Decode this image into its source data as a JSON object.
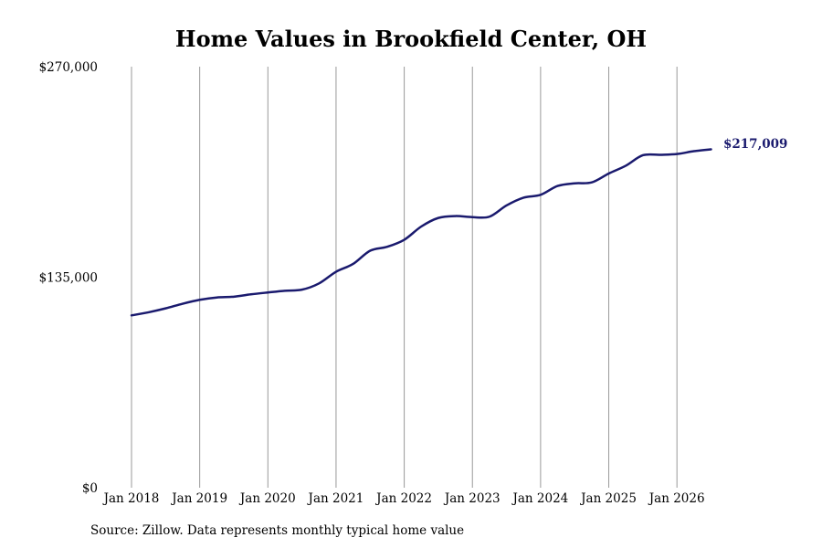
{
  "chart_data": {
    "type": "line",
    "title": "Home Values in Brookfield Center, OH",
    "xlabel": "",
    "ylabel": "",
    "yticks": [
      {
        "value": 0,
        "label": "$0"
      },
      {
        "value": 135000,
        "label": "$135,000"
      },
      {
        "value": 270000,
        "label": "$270,000"
      }
    ],
    "ylim": [
      0,
      270000
    ],
    "xlim": [
      "2018-01",
      "2026-07"
    ],
    "xticks": [
      {
        "value": "2018-01",
        "label": "Jan 2018"
      },
      {
        "value": "2019-01",
        "label": "Jan 2019"
      },
      {
        "value": "2020-01",
        "label": "Jan 2020"
      },
      {
        "value": "2021-01",
        "label": "Jan 2021"
      },
      {
        "value": "2022-01",
        "label": "Jan 2022"
      },
      {
        "value": "2023-01",
        "label": "Jan 2023"
      },
      {
        "value": "2024-01",
        "label": "Jan 2024"
      },
      {
        "value": "2025-01",
        "label": "Jan 2025"
      },
      {
        "value": "2026-01",
        "label": "Jan 2026"
      }
    ],
    "grid": "vertical",
    "line_color": "#1a1a6e",
    "end_label": "$217,009",
    "series": [
      {
        "x": [
          "2018-01",
          "2018-04",
          "2018-07",
          "2018-10",
          "2019-01",
          "2019-04",
          "2019-07",
          "2019-10",
          "2020-01",
          "2020-04",
          "2020-07",
          "2020-10",
          "2021-01",
          "2021-04",
          "2021-07",
          "2021-10",
          "2022-01",
          "2022-04",
          "2022-07",
          "2022-10",
          "2023-01",
          "2023-04",
          "2023-07",
          "2023-10",
          "2024-01",
          "2024-04",
          "2024-07",
          "2024-10",
          "2025-01",
          "2025-04",
          "2025-07",
          "2025-10",
          "2026-01",
          "2026-04",
          "2026-07"
        ],
        "values": [
          110500,
          112500,
          115000,
          118000,
          120500,
          122000,
          122500,
          124000,
          125200,
          126300,
          127000,
          131000,
          138500,
          143500,
          152000,
          154500,
          159000,
          167500,
          173000,
          174200,
          173500,
          173800,
          181000,
          186000,
          187800,
          193500,
          195200,
          195800,
          201500,
          206500,
          213200,
          213500,
          214000,
          215800,
          217009
        ]
      }
    ]
  },
  "source_note": "Source: Zillow. Data represents monthly typical home value"
}
